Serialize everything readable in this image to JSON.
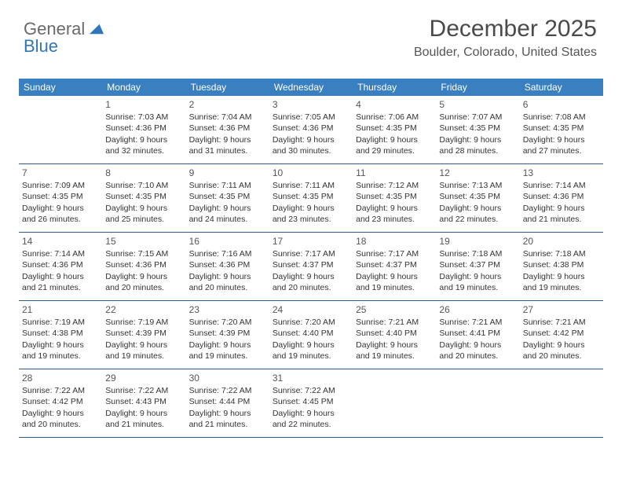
{
  "logo": {
    "line1": "General",
    "line2": "Blue"
  },
  "header": {
    "month_title": "December 2025",
    "location": "Boulder, Colorado, United States"
  },
  "colors": {
    "header_bg": "#3a7fbf",
    "header_text": "#ffffff",
    "row_border": "#2f5a8a",
    "logo_blue": "#2f77b8",
    "logo_gray": "#6a6a6a"
  },
  "day_headers": [
    "Sunday",
    "Monday",
    "Tuesday",
    "Wednesday",
    "Thursday",
    "Friday",
    "Saturday"
  ],
  "weeks": [
    [
      {
        "num": "",
        "sunrise": "",
        "sunset": "",
        "daylight": ""
      },
      {
        "num": "1",
        "sunrise": "Sunrise: 7:03 AM",
        "sunset": "Sunset: 4:36 PM",
        "daylight": "Daylight: 9 hours and 32 minutes."
      },
      {
        "num": "2",
        "sunrise": "Sunrise: 7:04 AM",
        "sunset": "Sunset: 4:36 PM",
        "daylight": "Daylight: 9 hours and 31 minutes."
      },
      {
        "num": "3",
        "sunrise": "Sunrise: 7:05 AM",
        "sunset": "Sunset: 4:36 PM",
        "daylight": "Daylight: 9 hours and 30 minutes."
      },
      {
        "num": "4",
        "sunrise": "Sunrise: 7:06 AM",
        "sunset": "Sunset: 4:35 PM",
        "daylight": "Daylight: 9 hours and 29 minutes."
      },
      {
        "num": "5",
        "sunrise": "Sunrise: 7:07 AM",
        "sunset": "Sunset: 4:35 PM",
        "daylight": "Daylight: 9 hours and 28 minutes."
      },
      {
        "num": "6",
        "sunrise": "Sunrise: 7:08 AM",
        "sunset": "Sunset: 4:35 PM",
        "daylight": "Daylight: 9 hours and 27 minutes."
      }
    ],
    [
      {
        "num": "7",
        "sunrise": "Sunrise: 7:09 AM",
        "sunset": "Sunset: 4:35 PM",
        "daylight": "Daylight: 9 hours and 26 minutes."
      },
      {
        "num": "8",
        "sunrise": "Sunrise: 7:10 AM",
        "sunset": "Sunset: 4:35 PM",
        "daylight": "Daylight: 9 hours and 25 minutes."
      },
      {
        "num": "9",
        "sunrise": "Sunrise: 7:11 AM",
        "sunset": "Sunset: 4:35 PM",
        "daylight": "Daylight: 9 hours and 24 minutes."
      },
      {
        "num": "10",
        "sunrise": "Sunrise: 7:11 AM",
        "sunset": "Sunset: 4:35 PM",
        "daylight": "Daylight: 9 hours and 23 minutes."
      },
      {
        "num": "11",
        "sunrise": "Sunrise: 7:12 AM",
        "sunset": "Sunset: 4:35 PM",
        "daylight": "Daylight: 9 hours and 23 minutes."
      },
      {
        "num": "12",
        "sunrise": "Sunrise: 7:13 AM",
        "sunset": "Sunset: 4:35 PM",
        "daylight": "Daylight: 9 hours and 22 minutes."
      },
      {
        "num": "13",
        "sunrise": "Sunrise: 7:14 AM",
        "sunset": "Sunset: 4:36 PM",
        "daylight": "Daylight: 9 hours and 21 minutes."
      }
    ],
    [
      {
        "num": "14",
        "sunrise": "Sunrise: 7:14 AM",
        "sunset": "Sunset: 4:36 PM",
        "daylight": "Daylight: 9 hours and 21 minutes."
      },
      {
        "num": "15",
        "sunrise": "Sunrise: 7:15 AM",
        "sunset": "Sunset: 4:36 PM",
        "daylight": "Daylight: 9 hours and 20 minutes."
      },
      {
        "num": "16",
        "sunrise": "Sunrise: 7:16 AM",
        "sunset": "Sunset: 4:36 PM",
        "daylight": "Daylight: 9 hours and 20 minutes."
      },
      {
        "num": "17",
        "sunrise": "Sunrise: 7:17 AM",
        "sunset": "Sunset: 4:37 PM",
        "daylight": "Daylight: 9 hours and 20 minutes."
      },
      {
        "num": "18",
        "sunrise": "Sunrise: 7:17 AM",
        "sunset": "Sunset: 4:37 PM",
        "daylight": "Daylight: 9 hours and 19 minutes."
      },
      {
        "num": "19",
        "sunrise": "Sunrise: 7:18 AM",
        "sunset": "Sunset: 4:37 PM",
        "daylight": "Daylight: 9 hours and 19 minutes."
      },
      {
        "num": "20",
        "sunrise": "Sunrise: 7:18 AM",
        "sunset": "Sunset: 4:38 PM",
        "daylight": "Daylight: 9 hours and 19 minutes."
      }
    ],
    [
      {
        "num": "21",
        "sunrise": "Sunrise: 7:19 AM",
        "sunset": "Sunset: 4:38 PM",
        "daylight": "Daylight: 9 hours and 19 minutes."
      },
      {
        "num": "22",
        "sunrise": "Sunrise: 7:19 AM",
        "sunset": "Sunset: 4:39 PM",
        "daylight": "Daylight: 9 hours and 19 minutes."
      },
      {
        "num": "23",
        "sunrise": "Sunrise: 7:20 AM",
        "sunset": "Sunset: 4:39 PM",
        "daylight": "Daylight: 9 hours and 19 minutes."
      },
      {
        "num": "24",
        "sunrise": "Sunrise: 7:20 AM",
        "sunset": "Sunset: 4:40 PM",
        "daylight": "Daylight: 9 hours and 19 minutes."
      },
      {
        "num": "25",
        "sunrise": "Sunrise: 7:21 AM",
        "sunset": "Sunset: 4:40 PM",
        "daylight": "Daylight: 9 hours and 19 minutes."
      },
      {
        "num": "26",
        "sunrise": "Sunrise: 7:21 AM",
        "sunset": "Sunset: 4:41 PM",
        "daylight": "Daylight: 9 hours and 20 minutes."
      },
      {
        "num": "27",
        "sunrise": "Sunrise: 7:21 AM",
        "sunset": "Sunset: 4:42 PM",
        "daylight": "Daylight: 9 hours and 20 minutes."
      }
    ],
    [
      {
        "num": "28",
        "sunrise": "Sunrise: 7:22 AM",
        "sunset": "Sunset: 4:42 PM",
        "daylight": "Daylight: 9 hours and 20 minutes."
      },
      {
        "num": "29",
        "sunrise": "Sunrise: 7:22 AM",
        "sunset": "Sunset: 4:43 PM",
        "daylight": "Daylight: 9 hours and 21 minutes."
      },
      {
        "num": "30",
        "sunrise": "Sunrise: 7:22 AM",
        "sunset": "Sunset: 4:44 PM",
        "daylight": "Daylight: 9 hours and 21 minutes."
      },
      {
        "num": "31",
        "sunrise": "Sunrise: 7:22 AM",
        "sunset": "Sunset: 4:45 PM",
        "daylight": "Daylight: 9 hours and 22 minutes."
      },
      {
        "num": "",
        "sunrise": "",
        "sunset": "",
        "daylight": ""
      },
      {
        "num": "",
        "sunrise": "",
        "sunset": "",
        "daylight": ""
      },
      {
        "num": "",
        "sunrise": "",
        "sunset": "",
        "daylight": ""
      }
    ]
  ]
}
